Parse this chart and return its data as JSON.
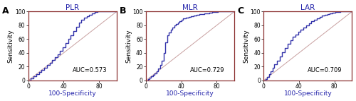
{
  "panels": [
    {
      "label": "A",
      "title": "PLR",
      "auc_text": "AUC=0.573",
      "roc_x": [
        0,
        3,
        3,
        6,
        6,
        9,
        9,
        12,
        12,
        15,
        15,
        18,
        18,
        21,
        21,
        24,
        24,
        27,
        27,
        30,
        30,
        33,
        33,
        36,
        36,
        39,
        39,
        42,
        42,
        45,
        45,
        48,
        48,
        51,
        51,
        54,
        54,
        57,
        57,
        60,
        60,
        63,
        63,
        66,
        66,
        69,
        69,
        72,
        72,
        75,
        75,
        78,
        78,
        81,
        81,
        84,
        84,
        87,
        87,
        90,
        90,
        93,
        93,
        96,
        96,
        100
      ],
      "roc_y": [
        0,
        0,
        3,
        3,
        6,
        6,
        9,
        9,
        12,
        12,
        15,
        15,
        18,
        18,
        22,
        22,
        26,
        26,
        30,
        30,
        34,
        34,
        38,
        38,
        43,
        43,
        48,
        48,
        54,
        54,
        60,
        60,
        66,
        66,
        72,
        72,
        78,
        78,
        84,
        84,
        88,
        88,
        91,
        91,
        93,
        93,
        95,
        95,
        97,
        97,
        99,
        99,
        100,
        100,
        100,
        100,
        100,
        100,
        100,
        100,
        100,
        100,
        100,
        100,
        100,
        100
      ]
    },
    {
      "label": "B",
      "title": "MLR",
      "auc_text": "AUC=0.729",
      "roc_x": [
        0,
        2,
        2,
        4,
        4,
        6,
        6,
        8,
        8,
        10,
        10,
        12,
        12,
        14,
        14,
        16,
        16,
        18,
        18,
        20,
        20,
        22,
        22,
        24,
        24,
        26,
        26,
        28,
        28,
        30,
        30,
        32,
        32,
        34,
        34,
        36,
        36,
        38,
        38,
        40,
        40,
        42,
        42,
        45,
        45,
        48,
        48,
        51,
        51,
        54,
        54,
        57,
        57,
        60,
        60,
        63,
        63,
        66,
        66,
        69,
        69,
        72,
        72,
        75,
        75,
        78,
        78,
        81,
        81,
        84,
        84,
        87,
        87,
        90,
        90,
        93,
        93,
        96,
        96,
        100
      ],
      "roc_y": [
        0,
        0,
        2,
        2,
        4,
        4,
        6,
        6,
        8,
        8,
        10,
        10,
        13,
        13,
        17,
        17,
        22,
        22,
        29,
        29,
        40,
        40,
        55,
        55,
        65,
        65,
        70,
        70,
        74,
        74,
        77,
        77,
        80,
        80,
        82,
        82,
        84,
        84,
        86,
        86,
        88,
        88,
        90,
        90,
        91,
        91,
        92,
        92,
        93,
        93,
        94,
        94,
        95,
        95,
        96,
        96,
        96,
        96,
        97,
        97,
        97,
        97,
        98,
        98,
        99,
        99,
        99,
        99,
        100,
        100,
        100,
        100,
        100,
        100,
        100,
        100,
        100,
        100,
        100,
        100
      ]
    },
    {
      "label": "C",
      "title": "LAR",
      "auc_text": "AUC=0.709",
      "roc_x": [
        0,
        2,
        2,
        4,
        4,
        6,
        6,
        8,
        8,
        10,
        10,
        12,
        12,
        15,
        15,
        18,
        18,
        21,
        21,
        24,
        24,
        27,
        27,
        30,
        30,
        33,
        33,
        36,
        36,
        39,
        39,
        42,
        42,
        45,
        45,
        48,
        48,
        51,
        51,
        54,
        54,
        57,
        57,
        60,
        60,
        63,
        63,
        66,
        66,
        69,
        69,
        72,
        72,
        75,
        75,
        78,
        78,
        81,
        81,
        84,
        84,
        87,
        87,
        90,
        90,
        93,
        93,
        96,
        96,
        100
      ],
      "roc_y": [
        0,
        0,
        2,
        2,
        5,
        5,
        9,
        9,
        13,
        13,
        18,
        18,
        23,
        23,
        29,
        29,
        35,
        35,
        41,
        41,
        47,
        47,
        53,
        53,
        58,
        58,
        63,
        63,
        67,
        67,
        71,
        71,
        74,
        74,
        77,
        77,
        80,
        80,
        83,
        83,
        86,
        86,
        88,
        88,
        90,
        90,
        92,
        92,
        94,
        94,
        95,
        95,
        96,
        96,
        97,
        97,
        98,
        98,
        99,
        99,
        99,
        99,
        100,
        100,
        100,
        100,
        100,
        100,
        100,
        100
      ]
    }
  ],
  "roc_color": "#3333AA",
  "diag_color": "#C8A0A0",
  "spine_color": "#8B3030",
  "title_color": "#2222AA",
  "xlabel_color": "#2222AA",
  "ylabel_color": "#000000",
  "tick_color": "#000000",
  "auc_fontsize": 6.0,
  "title_fontsize": 7.5,
  "axis_label_fontsize": 6.5,
  "tick_fontsize": 5.5,
  "panel_label_fontsize": 9,
  "roc_linewidth": 1.0,
  "diag_linewidth": 0.7,
  "spine_linewidth": 0.9,
  "fig_width": 5.0,
  "fig_height": 1.43,
  "dpi": 100,
  "xticks": [
    0,
    40,
    80
  ],
  "yticks": [
    0,
    20,
    40,
    60,
    80,
    100
  ],
  "xlim": [
    0,
    100
  ],
  "ylim": [
    0,
    100
  ]
}
